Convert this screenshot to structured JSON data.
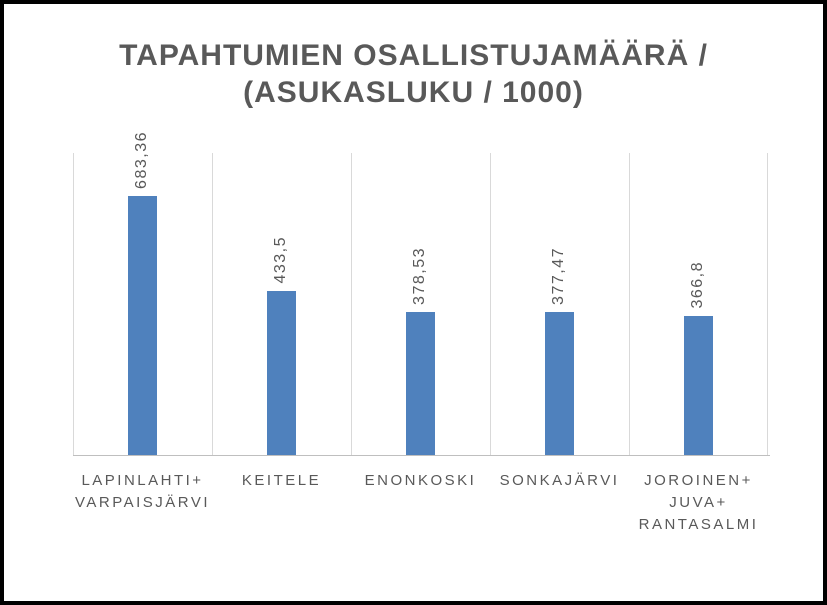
{
  "chart_data": {
    "type": "bar",
    "title": "TAPAHTUMIEN OSALLISTUJAMÄÄRÄ / (ASUKASLUKU / 1000)",
    "title_lines": [
      "TAPAHTUMIEN OSALLISTUJAMÄÄRÄ /",
      "(ASUKASLUKU / 1000)"
    ],
    "categories": [
      "LAPINLAHTI+ VARPAISJÄRVI",
      "KEITELE",
      "ENONKOSKI",
      "SONKAJÄRVI",
      "JOROINEN+ JUVA+ RANTASALMI"
    ],
    "category_lines": [
      [
        "LAPINLAHTI+",
        "VARPAISJÄRVI"
      ],
      [
        "KEITELE"
      ],
      [
        "ENONKOSKI"
      ],
      [
        "SONKAJÄRVI"
      ],
      [
        "JOROINEN+",
        "JUVA+",
        "RANTASALMI"
      ]
    ],
    "values": [
      683.36,
      433.5,
      378.53,
      377.47,
      366.8
    ],
    "value_labels": [
      "683,36",
      "433,5",
      "378,53",
      "377,47",
      "366,8"
    ],
    "xlabel": "",
    "ylabel": "",
    "ylim": [
      0,
      800
    ],
    "grid": "vertical-category-separators",
    "legend": "none",
    "colors": {
      "bar": "#4F81BD",
      "text": "#595959",
      "gridline": "#D9D9D9",
      "axis": "#BFBFBF",
      "frame": "#000000",
      "background": "#FFFFFF"
    }
  }
}
